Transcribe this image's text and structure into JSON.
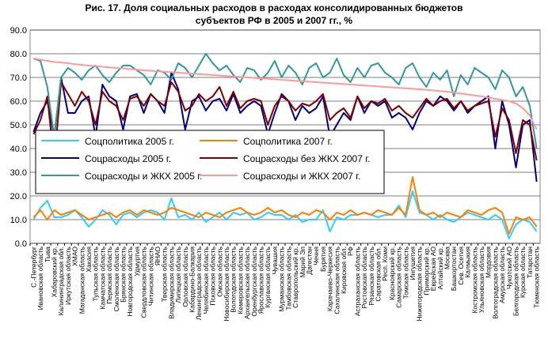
{
  "chart_data": {
    "type": "line",
    "title": [
      "Рис. 17. Доля социальных расходов в расходах консолидированных бюджетов",
      "субъектов РФ в 2005 и 2007 гг., %"
    ],
    "categories": [
      "С.-Петербург",
      "Ивановская область",
      "Тыва",
      "Хабаровский кр.",
      "Калининградская обл.",
      "Иркутская область",
      "ХМАО",
      "Магаданская область",
      "Хакасия",
      "Тульская область",
      "Камчатская область",
      "Пермская область",
      "Смоленская область",
      "Брянская область",
      "Новгородская область",
      "Удмуртия",
      "Свердловская область",
      "Читинская область",
      "ЯНАО",
      "Тверская область",
      "Владимирская область",
      "Липецкая область",
      "Орловская область",
      "Кабардино-Балкария",
      "Ленинградская область",
      "Челябинская область",
      "Псковская область",
      "Омская область",
      "Новосибирская область",
      "Вологодская область",
      "Кемеровская область",
      "Архангельская область",
      "Оренбургская область",
      "Ярославская область",
      "Курганская область",
      "Чувашия",
      "Мурманская область",
      "Тамбовская область",
      "Ставропольский кр.",
      "Марий Эл",
      "Дагестан",
      "Чечня",
      "Бурятия",
      "Карачаево-Черкесия",
      "Сахалинская область",
      "Кировская обл.",
      "РФ",
      "Астраханская область",
      "Ростовская область",
      "Рязанская область",
      "Саратовская обл.",
      "Респ. Коми",
      "Красноярский кр.",
      "Самарская область",
      "Томская область",
      "Ингушетия",
      "Нижегородская область",
      "Приморский кр.",
      "Еврейская АО",
      "Алтайский кр.",
      "Москва",
      "Башкортостан",
      "Сев. Осетия",
      "Калмыкия",
      "Костромская область",
      "Ульяновская область",
      "Мордовия",
      "Волгоградская область",
      "Амурская область",
      "Чукотский АО",
      "Белгородская область",
      "Курская область",
      "Татарстан",
      "Тюменская область"
    ],
    "series": [
      {
        "name": "Соцполитика 2005 г.",
        "color": "#33ccff",
        "values": [
          10,
          15,
          18,
          11,
          11,
          12,
          14,
          11,
          7,
          10,
          14,
          12,
          8,
          12,
          13,
          11,
          13,
          14,
          13,
          10,
          19,
          11,
          12,
          10,
          13,
          9,
          11,
          13,
          10,
          13,
          12,
          13,
          10,
          11,
          13,
          12,
          12,
          10,
          12,
          9,
          10,
          10,
          14,
          5,
          11,
          10,
          12,
          12,
          13,
          12,
          11,
          12,
          12,
          16,
          11,
          22,
          13,
          12,
          10,
          12,
          10,
          9,
          11,
          13,
          12,
          11,
          10,
          12,
          10,
          2,
          8,
          10,
          9,
          5
        ]
      },
      {
        "name": "Соцполитика 2007 г.",
        "color": "#ff8000",
        "values": [
          11,
          14,
          10,
          14,
          12,
          13,
          14,
          12,
          10,
          11,
          12,
          13,
          11,
          13,
          14,
          12,
          14,
          13,
          12,
          13,
          15,
          14,
          13,
          12,
          11,
          13,
          12,
          11,
          13,
          14,
          15,
          13,
          12,
          13,
          15,
          13,
          14,
          12,
          11,
          13,
          12,
          14,
          13,
          10,
          13,
          12,
          14,
          12,
          13,
          12,
          14,
          13,
          12,
          15,
          12,
          28,
          14,
          12,
          13,
          11,
          13,
          12,
          11,
          14,
          13,
          12,
          14,
          15,
          13,
          4,
          11,
          10,
          11,
          7
        ]
      },
      {
        "name": "Соцрасходы 2005 г.",
        "color": "#000080",
        "values": [
          47,
          55,
          60,
          45,
          70,
          55,
          55,
          60,
          62,
          45,
          67,
          62,
          60,
          48,
          62,
          63,
          55,
          63,
          60,
          55,
          72,
          65,
          48,
          60,
          62,
          56,
          60,
          61,
          56,
          63,
          55,
          58,
          60,
          58,
          46,
          55,
          63,
          60,
          52,
          58,
          55,
          57,
          62,
          45,
          50,
          55,
          52,
          62,
          55,
          60,
          58,
          60,
          53,
          55,
          53,
          48,
          55,
          60,
          58,
          62,
          60,
          56,
          60,
          55,
          58,
          60,
          62,
          40,
          60,
          50,
          32,
          50,
          52,
          26
        ]
      },
      {
        "name": "Соцрасходы без ЖКХ 2007 г.",
        "color": "#800000",
        "values": [
          46,
          52,
          62,
          34,
          68,
          63,
          58,
          64,
          60,
          50,
          64,
          60,
          58,
          52,
          61,
          62,
          58,
          63,
          60,
          58,
          68,
          64,
          56,
          58,
          63,
          60,
          62,
          66,
          58,
          64,
          57,
          60,
          61,
          60,
          50,
          58,
          62,
          60,
          56,
          59,
          58,
          60,
          63,
          52,
          55,
          57,
          53,
          62,
          57,
          60,
          59,
          61,
          56,
          58,
          55,
          53,
          57,
          61,
          58,
          60,
          61,
          57,
          60,
          56,
          58,
          59,
          60,
          45,
          57,
          52,
          38,
          52,
          50,
          35
        ]
      },
      {
        "name": "Соцрасходы и ЖКХ 2005 г.",
        "color": "#339999",
        "values": [
          78,
          77,
          66,
          45,
          70,
          74,
          72,
          69,
          73,
          75,
          71,
          68,
          72,
          75,
          75,
          73,
          71,
          67,
          73,
          72,
          69,
          76,
          74,
          70,
          75,
          80,
          76,
          73,
          75,
          71,
          68,
          74,
          73,
          69,
          72,
          77,
          70,
          75,
          72,
          67,
          74,
          76,
          70,
          72,
          78,
          71,
          68,
          74,
          70,
          75,
          76,
          72,
          70,
          67,
          74,
          76,
          70,
          66,
          72,
          69,
          73,
          62,
          71,
          67,
          74,
          72,
          70,
          65,
          73,
          70,
          62,
          66,
          58,
          40
        ]
      },
      {
        "name": "Соцрасходы и ЖКХ 2007 г.",
        "color": "#ff9999",
        "values": [
          78,
          77.5,
          77,
          76.5,
          76.3,
          76,
          75.6,
          75.3,
          75,
          74.8,
          74.5,
          74.2,
          74,
          73.8,
          73.5,
          73.3,
          73,
          72.8,
          72.6,
          72.4,
          72.2,
          72,
          71.8,
          71.6,
          71.4,
          71.2,
          71,
          70.8,
          70.6,
          70.4,
          70.2,
          70,
          69.8,
          69.6,
          69.4,
          69.2,
          69,
          68.8,
          68.6,
          68.4,
          68.2,
          68,
          67.8,
          67.6,
          67.4,
          67.2,
          67,
          66.8,
          66.6,
          66.4,
          66.2,
          66,
          65.8,
          65.6,
          65.4,
          65.2,
          65,
          64.8,
          64.5,
          64.2,
          64,
          63.6,
          63.2,
          62.8,
          62.4,
          62,
          61.5,
          61,
          60.5,
          60,
          59,
          57,
          54,
          48
        ]
      }
    ],
    "ylim": [
      0,
      90
    ],
    "yticks": [
      {
        "value": 0,
        "label": "0.0"
      },
      {
        "value": 10,
        "label": "10.0"
      },
      {
        "value": 20,
        "label": "20.0"
      },
      {
        "value": 30,
        "label": "30.0"
      },
      {
        "value": 40,
        "label": "40.0"
      },
      {
        "value": 50,
        "label": "50.0"
      },
      {
        "value": 60,
        "label": "60.0"
      },
      {
        "value": 70,
        "label": "70.0"
      },
      {
        "value": 80,
        "label": "80.0"
      },
      {
        "value": 90,
        "label": "90.0"
      }
    ],
    "grid": true
  }
}
